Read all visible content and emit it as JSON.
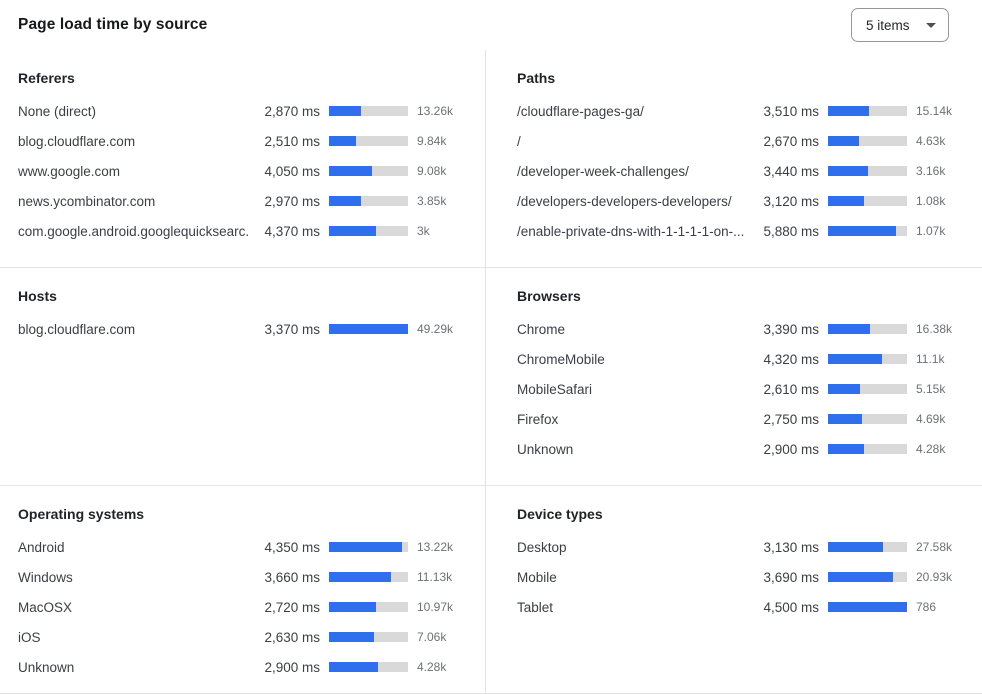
{
  "header": {
    "title": "Page load time by source",
    "items_dropdown": "5 items"
  },
  "colors": {
    "bar_fill": "#2f6fed",
    "bar_track": "#d9d9d9",
    "divider": "#e4e4e4"
  },
  "sections": [
    {
      "title": "Referers",
      "rows": [
        {
          "label": "None (direct)",
          "time": "2,870 ms",
          "count": "13.26k",
          "bar_pct": 40
        },
        {
          "label": "blog.cloudflare.com",
          "time": "2,510 ms",
          "count": "9.84k",
          "bar_pct": 34
        },
        {
          "label": "www.google.com",
          "time": "4,050 ms",
          "count": "9.08k",
          "bar_pct": 55
        },
        {
          "label": "news.ycombinator.com",
          "time": "2,970 ms",
          "count": "3.85k",
          "bar_pct": 41
        },
        {
          "label": "com.google.android.googlequicksearc...",
          "time": "4,370 ms",
          "count": "3k",
          "bar_pct": 60
        }
      ]
    },
    {
      "title": "Paths",
      "rows": [
        {
          "label": "/cloudflare-pages-ga/",
          "time": "3,510 ms",
          "count": "15.14k",
          "bar_pct": 52
        },
        {
          "label": "/",
          "time": "2,670 ms",
          "count": "4.63k",
          "bar_pct": 39
        },
        {
          "label": "/developer-week-challenges/",
          "time": "3,440 ms",
          "count": "3.16k",
          "bar_pct": 51
        },
        {
          "label": "/developers-developers-developers/",
          "time": "3,120 ms",
          "count": "1.08k",
          "bar_pct": 46
        },
        {
          "label": "/enable-private-dns-with-1-1-1-1-on-...",
          "time": "5,880 ms",
          "count": "1.07k",
          "bar_pct": 86
        }
      ]
    },
    {
      "title": "Hosts",
      "rows": [
        {
          "label": "blog.cloudflare.com",
          "time": "3,370 ms",
          "count": "49.29k",
          "bar_pct": 100
        }
      ]
    },
    {
      "title": "Browsers",
      "rows": [
        {
          "label": "Chrome",
          "time": "3,390 ms",
          "count": "16.38k",
          "bar_pct": 53
        },
        {
          "label": "ChromeMobile",
          "time": "4,320 ms",
          "count": "11.1k",
          "bar_pct": 68
        },
        {
          "label": "MobileSafari",
          "time": "2,610 ms",
          "count": "5.15k",
          "bar_pct": 41
        },
        {
          "label": "Firefox",
          "time": "2,750 ms",
          "count": "4.69k",
          "bar_pct": 43
        },
        {
          "label": "Unknown",
          "time": "2,900 ms",
          "count": "4.28k",
          "bar_pct": 45
        }
      ]
    },
    {
      "title": "Operating systems",
      "rows": [
        {
          "label": "Android",
          "time": "4,350 ms",
          "count": "13.22k",
          "bar_pct": 93
        },
        {
          "label": "Windows",
          "time": "3,660 ms",
          "count": "11.13k",
          "bar_pct": 79
        },
        {
          "label": "MacOSX",
          "time": "2,720 ms",
          "count": "10.97k",
          "bar_pct": 59
        },
        {
          "label": "iOS",
          "time": "2,630 ms",
          "count": "7.06k",
          "bar_pct": 57
        },
        {
          "label": "Unknown",
          "time": "2,900 ms",
          "count": "4.28k",
          "bar_pct": 62
        }
      ]
    },
    {
      "title": "Device types",
      "rows": [
        {
          "label": "Desktop",
          "time": "3,130 ms",
          "count": "27.58k",
          "bar_pct": 70
        },
        {
          "label": "Mobile",
          "time": "3,690 ms",
          "count": "20.93k",
          "bar_pct": 82
        },
        {
          "label": "Tablet",
          "time": "4,500 ms",
          "count": "786",
          "bar_pct": 100
        }
      ]
    }
  ]
}
